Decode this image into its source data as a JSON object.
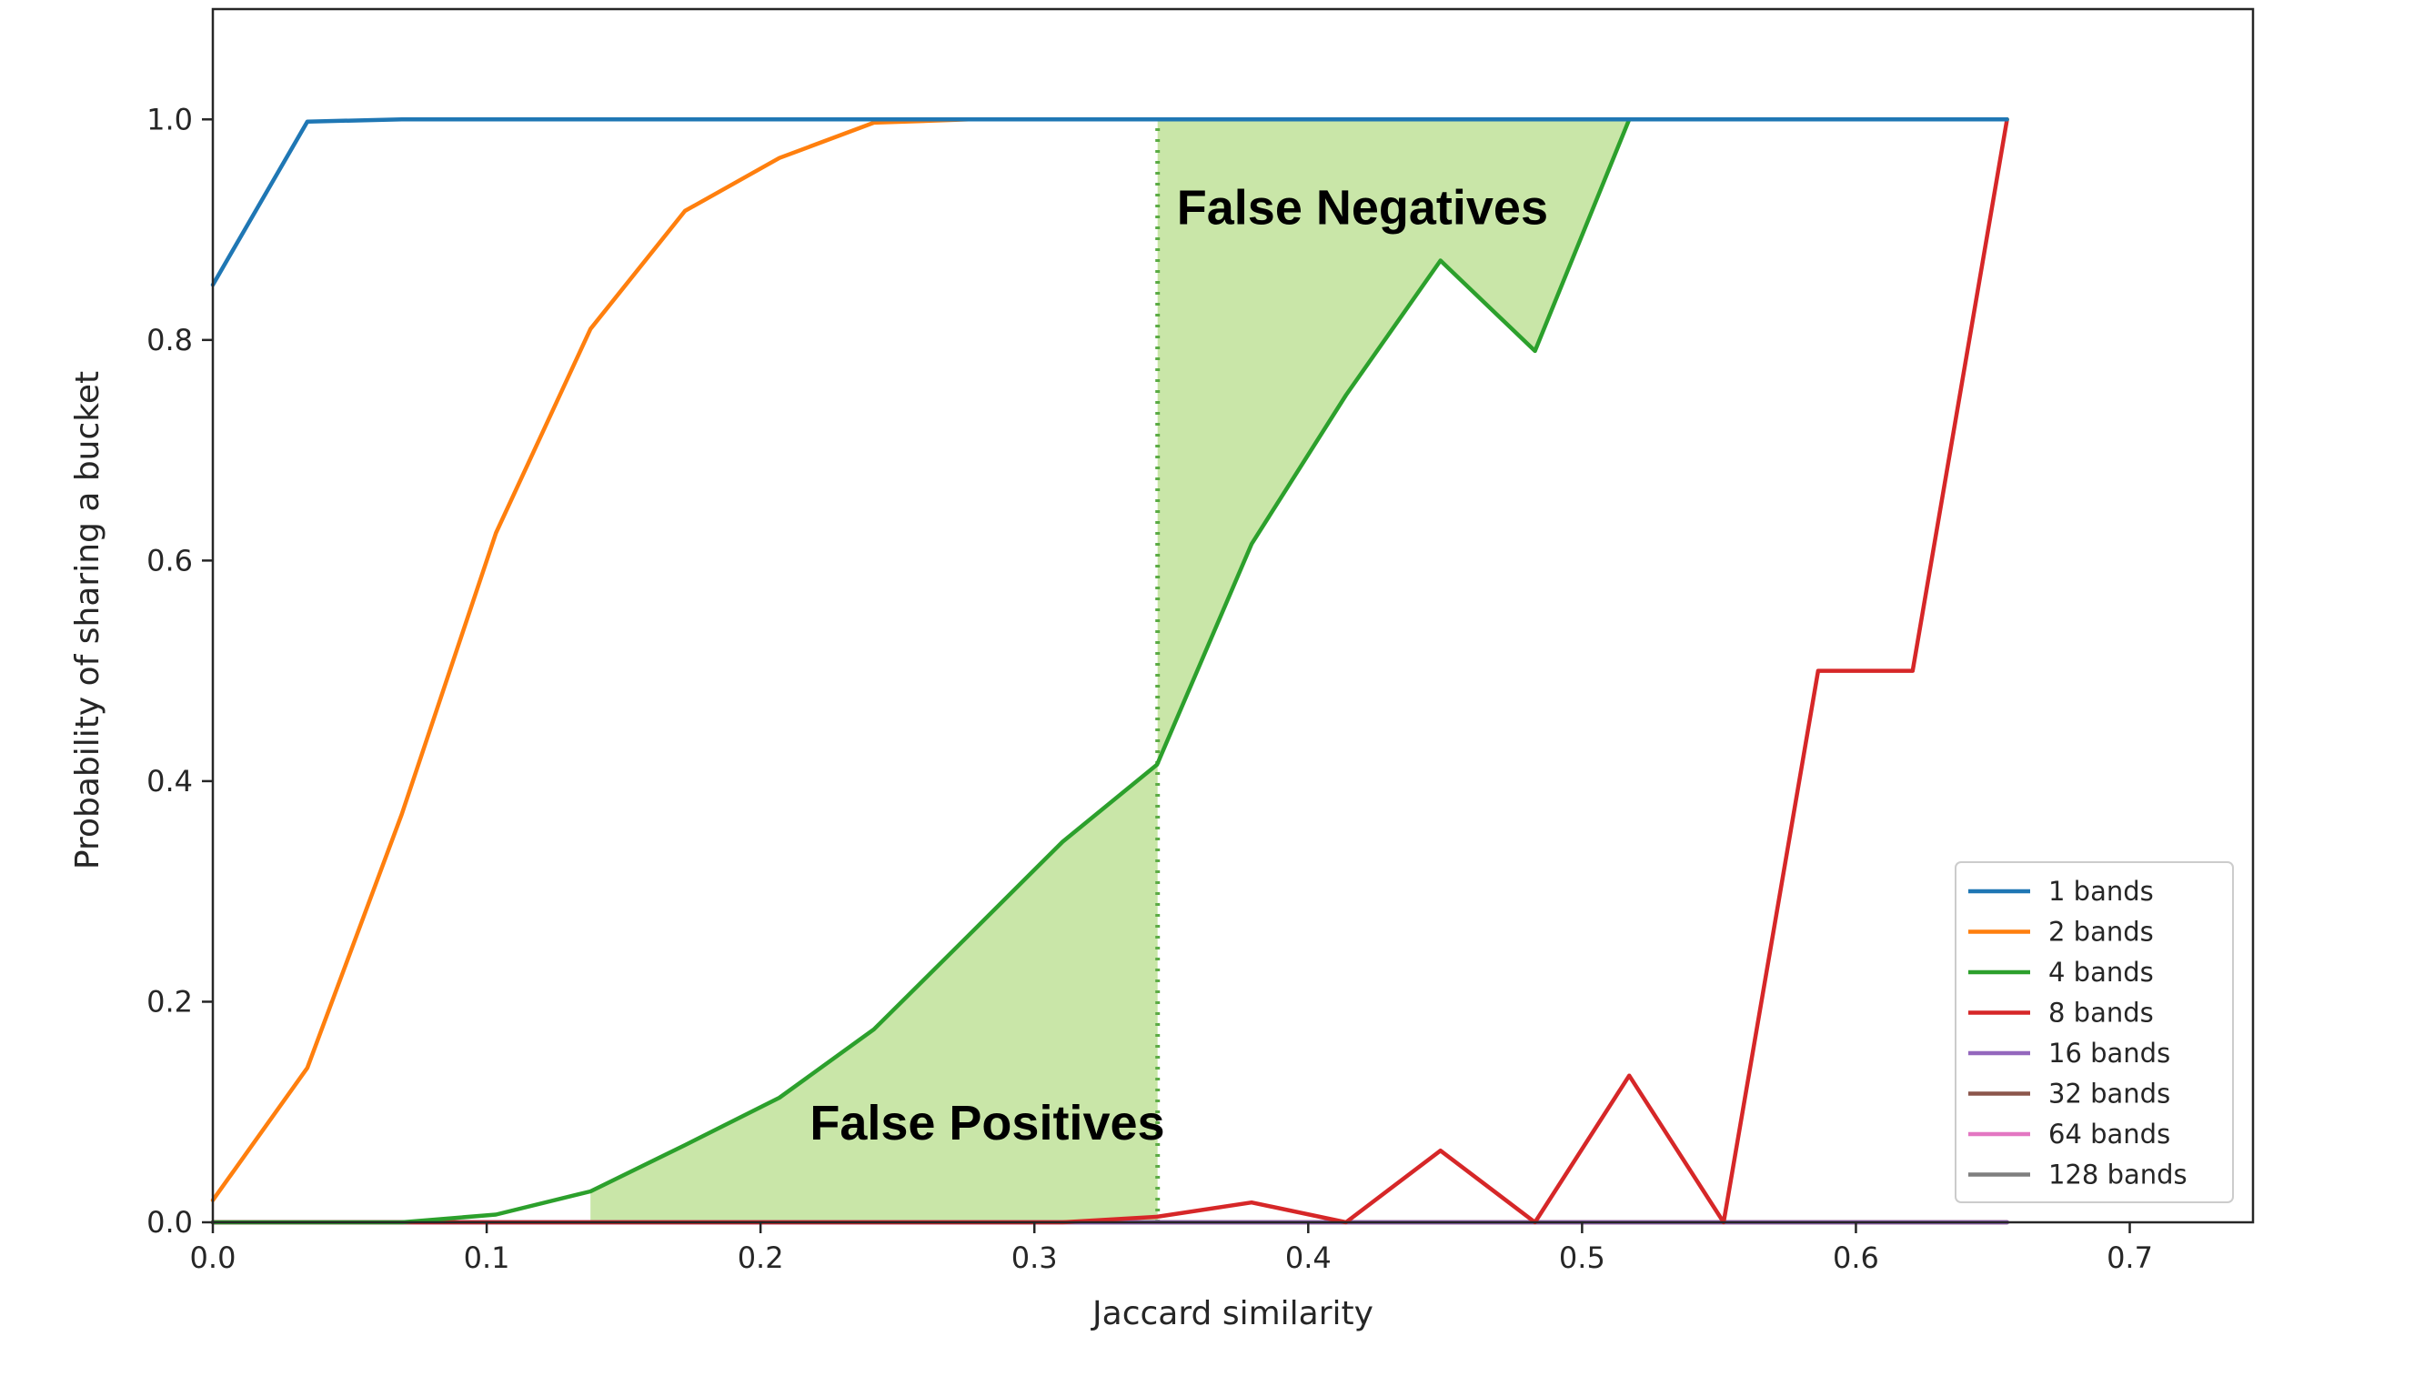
{
  "chart_data": {
    "type": "line",
    "title": "",
    "xlabel": "Jaccard similarity",
    "ylabel": "Probability of sharing a bucket",
    "xlim": [
      0.0,
      0.745
    ],
    "ylim": [
      0.0,
      1.1
    ],
    "xticks": [
      0.0,
      0.1,
      0.2,
      0.3,
      0.4,
      0.5,
      0.6,
      0.7
    ],
    "xtick_labels": [
      "0.0",
      "0.1",
      "0.2",
      "0.3",
      "0.4",
      "0.5",
      "0.6",
      "0.7"
    ],
    "yticks": [
      0.0,
      0.2,
      0.4,
      0.6,
      0.8,
      1.0
    ],
    "ytick_labels": [
      "0.0",
      "0.2",
      "0.4",
      "0.6",
      "0.8",
      "1.0"
    ],
    "grid": false,
    "legend_position": "lower-right",
    "x": [
      0.0,
      0.0345,
      0.069,
      0.1034,
      0.1379,
      0.1724,
      0.2069,
      0.2414,
      0.2759,
      0.3103,
      0.3448,
      0.3793,
      0.4138,
      0.4483,
      0.4828,
      0.5172,
      0.5517,
      0.5862,
      0.6207,
      0.6552
    ],
    "series": [
      {
        "name": "1 bands",
        "color": "#1f77b4",
        "values": [
          0.85,
          0.998,
          1.0,
          1.0,
          1.0,
          1.0,
          1.0,
          1.0,
          1.0,
          1.0,
          1.0,
          1.0,
          1.0,
          1.0,
          1.0,
          1.0,
          1.0,
          1.0,
          1.0,
          1.0
        ]
      },
      {
        "name": "2 bands",
        "color": "#ff7f0e",
        "values": [
          0.02,
          0.14,
          0.37,
          0.625,
          0.81,
          0.917,
          0.965,
          0.997,
          1.0,
          1.0,
          1.0,
          1.0,
          1.0,
          1.0,
          1.0,
          1.0,
          1.0,
          1.0,
          1.0,
          1.0
        ]
      },
      {
        "name": "4 bands",
        "color": "#2ca02c",
        "values": [
          0.0,
          0.0,
          0.0,
          0.007,
          0.028,
          0.07,
          0.113,
          0.175,
          0.26,
          0.345,
          0.415,
          0.615,
          0.75,
          0.872,
          0.79,
          1.0,
          1.0,
          1.0,
          1.0,
          1.0
        ]
      },
      {
        "name": "8 bands",
        "color": "#d62728",
        "values": [
          0.0,
          0.0,
          0.0,
          0.0,
          0.0,
          0.0,
          0.0,
          0.0,
          0.0,
          0.0,
          0.005,
          0.018,
          0.0,
          0.065,
          0.0,
          0.133,
          0.0,
          0.5,
          0.5,
          1.0
        ]
      },
      {
        "name": "16 bands",
        "color": "#9467bd",
        "values": [
          0.0,
          0.0,
          0.0,
          0.0,
          0.0,
          0.0,
          0.0,
          0.0,
          0.0,
          0.0,
          0.0,
          0.0,
          0.0,
          0.0,
          0.0,
          0.0,
          0.0,
          0.0,
          0.0,
          0.0
        ]
      },
      {
        "name": "32 bands",
        "color": "#8c564b",
        "values": [
          0.0,
          0.0,
          0.0,
          0.0,
          0.0,
          0.0,
          0.0,
          0.0,
          0.0,
          0.0,
          0.0,
          0.0,
          0.0,
          0.0,
          0.0,
          0.0,
          0.0,
          0.0,
          0.0,
          0.0
        ]
      },
      {
        "name": "64 bands",
        "color": "#e377c2",
        "values": [
          0.0,
          0.0,
          0.0,
          0.0,
          0.0,
          0.0,
          0.0,
          0.0,
          0.0,
          0.0,
          0.0,
          0.0,
          0.0,
          0.0,
          0.0,
          0.0,
          0.0,
          0.0,
          0.0,
          0.0
        ]
      },
      {
        "name": "128 bands",
        "color": "#7f7f7f",
        "values": [
          0.0,
          0.0,
          0.0,
          0.0,
          0.0,
          0.0,
          0.0,
          0.0,
          0.0,
          0.0,
          0.0,
          0.0,
          0.0,
          0.0,
          0.0,
          0.0,
          0.0,
          0.0,
          0.0,
          0.0
        ]
      }
    ],
    "threshold_x": 0.345,
    "threshold_color": "#5cab45",
    "highlight_color": "#c9e6a8",
    "annotations": [
      {
        "text": "False Negatives",
        "x": 0.352,
        "y": 0.905
      },
      {
        "text": "False Positives",
        "x": 0.218,
        "y": 0.075
      }
    ]
  }
}
